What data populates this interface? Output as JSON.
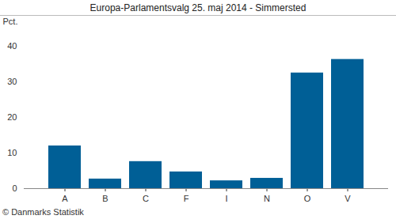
{
  "chart_data": {
    "type": "bar",
    "title": "Europa-Parlamentsvalg 25. maj 2014 - Simmersted",
    "y_label": "Pct.",
    "caption": "© Danmarks Statistik",
    "categories": [
      "A",
      "B",
      "C",
      "F",
      "I",
      "N",
      "O",
      "V"
    ],
    "values": [
      12.0,
      2.7,
      7.6,
      4.7,
      2.2,
      2.9,
      32.5,
      36.3
    ],
    "color": "#005f96",
    "ylim": [
      0,
      40
    ],
    "yticks": [
      0,
      10,
      20,
      30,
      40
    ],
    "grid": false
  }
}
